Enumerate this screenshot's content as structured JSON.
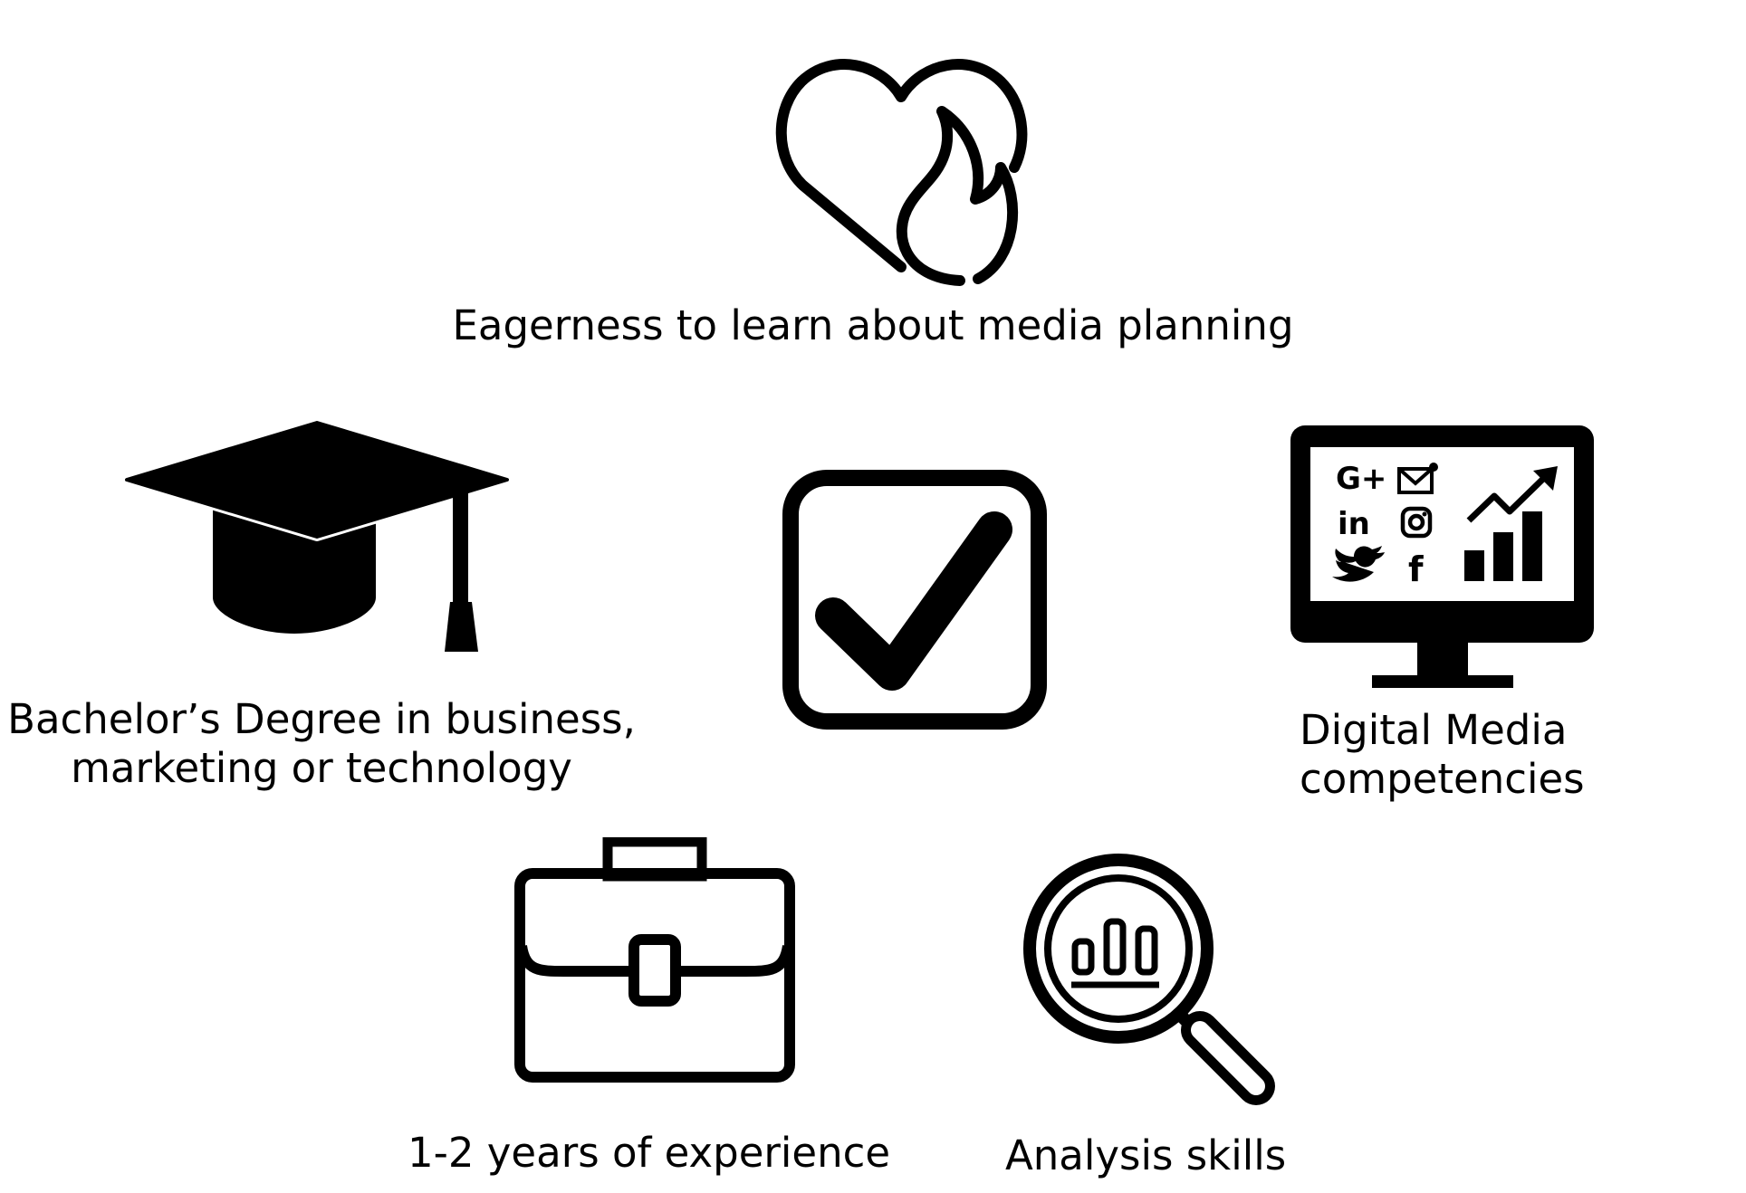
{
  "diagram": {
    "center": {
      "icon": "checkbox-check-icon"
    },
    "items": [
      {
        "icon": "heart-flame-icon",
        "lines": [
          "Eagerness to learn about media planning"
        ]
      },
      {
        "icon": "graduation-cap-icon",
        "lines": [
          "Bachelor’s Degree in business,",
          "marketing or technology"
        ]
      },
      {
        "icon": "digital-media-monitor-icon",
        "lines": [
          "Digital Media",
          "competencies"
        ]
      },
      {
        "icon": "briefcase-icon",
        "lines": [
          "1-2 years of experience"
        ]
      },
      {
        "icon": "magnifier-chart-icon",
        "lines": [
          "Analysis skills"
        ]
      }
    ],
    "monitor_screen": {
      "google_plus": "G+",
      "linkedin": "in",
      "facebook": "f"
    }
  }
}
